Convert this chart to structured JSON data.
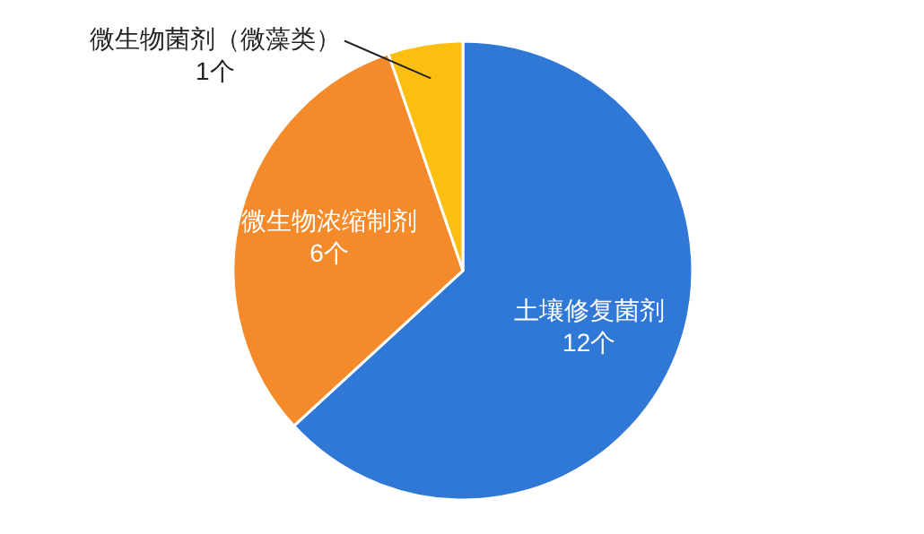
{
  "chart_data": {
    "type": "pie",
    "categories": [
      "土壤修复菌剂",
      "微生物浓缩制剂",
      "微生物菌剂（微藻类）"
    ],
    "values": [
      12,
      6,
      1
    ],
    "colors": [
      "#2f78d6",
      "#f58a2b",
      "#fdbf0f"
    ],
    "value_labels": [
      "12个",
      "6个",
      "1个"
    ],
    "legend": false
  }
}
